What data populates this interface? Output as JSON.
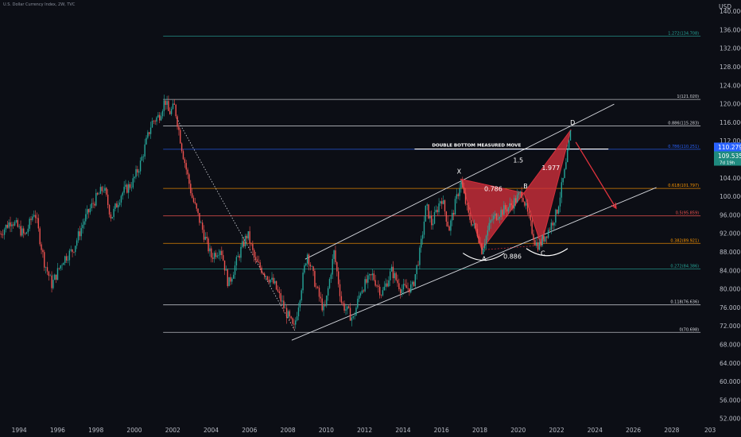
{
  "header": {
    "title": "U.S. Dollar Currency Index, 2W, TVC",
    "currency": "USD"
  },
  "price_tags": {
    "current": "110.279",
    "second": "109.535",
    "countdown": "7d 19h"
  },
  "colors": {
    "background": "#0c0e15",
    "bull_candle": "#26a69a",
    "bear_candle": "#ef5350",
    "pattern_fill": "#d32f3c",
    "arrow": "#e0333d",
    "channel": "#d6d8de",
    "tag_blue": "#2962ff",
    "tag_teal": "#1f8a7f"
  },
  "chart_data": {
    "type": "candlestick",
    "x_ticks": [
      "1994",
      "1996",
      "1998",
      "2000",
      "2002",
      "2004",
      "2006",
      "2008",
      "2010",
      "2012",
      "2014",
      "2016",
      "2018",
      "2020",
      "2022",
      "2024",
      "2026",
      "2028",
      "203"
    ],
    "y_ticks": [
      "140.000",
      "136.000",
      "132.000",
      "128.000",
      "124.000",
      "120.000",
      "116.000",
      "112.000",
      "108.000",
      "104.000",
      "100.000",
      "96.000",
      "92.000",
      "88.000",
      "84.000",
      "80.000",
      "76.000",
      "72.000",
      "68.000",
      "64.000",
      "60.000",
      "56.000",
      "52.000"
    ],
    "xlim": [
      1993.0,
      2030.2
    ],
    "ylim": [
      51.0,
      142.5
    ],
    "price_path": [
      [
        1993.0,
        92.0
      ],
      [
        1993.6,
        95.0
      ],
      [
        1994.3,
        91.5
      ],
      [
        1994.8,
        97.0
      ],
      [
        1995.3,
        86.0
      ],
      [
        1995.7,
        81.0
      ],
      [
        1996.3,
        86.5
      ],
      [
        1996.8,
        88.5
      ],
      [
        1997.4,
        95.0
      ],
      [
        1997.9,
        99.0
      ],
      [
        1998.4,
        102.0
      ],
      [
        1998.8,
        95.5
      ],
      [
        1999.3,
        100.5
      ],
      [
        1999.9,
        103.0
      ],
      [
        2000.3,
        107.0
      ],
      [
        2000.9,
        116.0
      ],
      [
        2001.3,
        117.5
      ],
      [
        2001.6,
        121.0
      ],
      [
        2001.8,
        118.0
      ],
      [
        2002.1,
        119.5
      ],
      [
        2002.5,
        110.0
      ],
      [
        2003.0,
        100.0
      ],
      [
        2003.5,
        93.5
      ],
      [
        2004.0,
        87.0
      ],
      [
        2004.5,
        89.0
      ],
      [
        2004.9,
        81.0
      ],
      [
        2005.5,
        88.0
      ],
      [
        2005.9,
        92.0
      ],
      [
        2006.3,
        86.0
      ],
      [
        2006.8,
        83.5
      ],
      [
        2007.3,
        81.0
      ],
      [
        2007.8,
        76.0
      ],
      [
        2008.2,
        72.5
      ],
      [
        2008.3,
        71.0
      ],
      [
        2008.6,
        78.0
      ],
      [
        2009.0,
        88.0
      ],
      [
        2009.5,
        80.0
      ],
      [
        2009.9,
        75.0
      ],
      [
        2010.4,
        88.0
      ],
      [
        2010.8,
        77.0
      ],
      [
        2011.4,
        73.5
      ],
      [
        2011.8,
        80.0
      ],
      [
        2012.4,
        83.0
      ],
      [
        2012.9,
        79.0
      ],
      [
        2013.4,
        84.0
      ],
      [
        2013.9,
        80.0
      ],
      [
        2014.5,
        80.5
      ],
      [
        2014.9,
        88.5
      ],
      [
        2015.2,
        98.0
      ],
      [
        2015.5,
        94.0
      ],
      [
        2016.0,
        100.0
      ],
      [
        2016.4,
        93.0
      ],
      [
        2016.9,
        101.5
      ],
      [
        2017.0,
        103.5
      ],
      [
        2017.4,
        96.0
      ],
      [
        2017.9,
        92.0
      ],
      [
        2018.1,
        88.5
      ],
      [
        2018.6,
        95.0
      ],
      [
        2019.0,
        96.5
      ],
      [
        2019.6,
        98.0
      ],
      [
        2020.2,
        101.0
      ],
      [
        2020.5,
        96.0
      ],
      [
        2020.9,
        90.0
      ],
      [
        2021.1,
        89.5
      ],
      [
        2021.6,
        93.0
      ],
      [
        2022.0,
        96.5
      ],
      [
        2022.5,
        107.0
      ],
      [
        2022.75,
        114.5
      ]
    ],
    "fib_levels": [
      {
        "label": "1.272(134.708)",
        "value": 134.708,
        "color": "#26a69a"
      },
      {
        "label": "1(121.020)",
        "value": 121.02,
        "color": "#d6d8de"
      },
      {
        "label": "0.886(115.283)",
        "value": 115.283,
        "color": "#d6d8de"
      },
      {
        "label": "0.786(110.251)",
        "value": 110.251,
        "color": "#2962ff"
      },
      {
        "label": "0.618(101.797)",
        "value": 101.797,
        "color": "#ff9800"
      },
      {
        "label": "0.5(95.859)",
        "value": 95.859,
        "color": "#ef5350"
      },
      {
        "label": "0.382(89.921)",
        "value": 89.921,
        "color": "#ff9800"
      },
      {
        "label": "0.272(84.386)",
        "value": 84.386,
        "color": "#26a69a"
      },
      {
        "label": "0.118(76.636)",
        "value": 76.636,
        "color": "#d6d8de"
      },
      {
        "label": "0(70.698)",
        "value": 70.698,
        "color": "#d6d8de"
      }
    ],
    "fib_x_range": [
      2001.5,
      2029.5
    ],
    "channel_upper": [
      [
        2008.9,
        86.5
      ],
      [
        2025.0,
        120.0
      ]
    ],
    "channel_lower": [
      [
        2008.2,
        69.0
      ],
      [
        2027.2,
        102.0
      ]
    ],
    "pattern_points": [
      {
        "label": "X",
        "x": 2017.0,
        "y": 103.8
      },
      {
        "label": "A",
        "x": 2018.1,
        "y": 88.5
      },
      {
        "label": "B",
        "x": 2020.3,
        "y": 100.8
      },
      {
        "label": "C",
        "x": 2021.2,
        "y": 89.5
      },
      {
        "label": "D",
        "x": 2022.75,
        "y": 114.5
      }
    ],
    "ratios": [
      {
        "label": "0.786",
        "x": 2018.7,
        "y": 101.2
      },
      {
        "label": "1.5",
        "x": 2020.0,
        "y": 107.4
      },
      {
        "label": "1.977",
        "x": 2021.7,
        "y": 105.8
      },
      {
        "label": "0.886",
        "x": 2019.7,
        "y": 86.6
      }
    ],
    "measured_move": {
      "label": "DOUBLE BOTTOM MEASURED MOVE",
      "x1": 2014.6,
      "x2": 2024.7,
      "y": 110.3
    },
    "projection_arrow": [
      [
        2023.0,
        111.8
      ],
      [
        2025.1,
        97.5
      ]
    ],
    "diagonal": [
      [
        2002.2,
        117.0
      ],
      [
        2008.4,
        70.8
      ]
    ]
  }
}
